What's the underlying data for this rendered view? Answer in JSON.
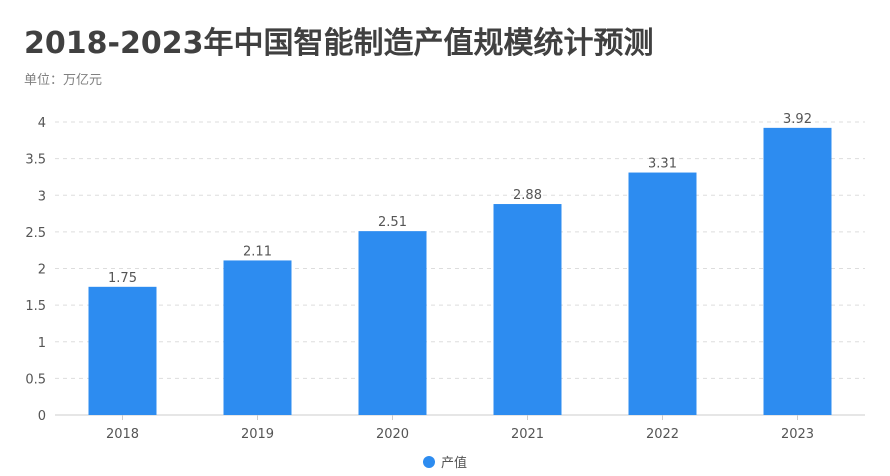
{
  "title": "2018-2023年中国智能制造产值规模统计预测",
  "subtitle": "单位：万亿元",
  "chart_data": {
    "type": "bar",
    "categories": [
      "2018",
      "2019",
      "2020",
      "2021",
      "2022",
      "2023"
    ],
    "series": [
      {
        "name": "产值",
        "values": [
          1.75,
          2.11,
          2.51,
          2.88,
          3.31,
          3.92
        ],
        "color": "#2d8cf0"
      }
    ],
    "yticks": [
      "0",
      "0.5",
      "1",
      "1.5",
      "2",
      "2.5",
      "3",
      "3.5",
      "4"
    ],
    "ylim": [
      0,
      4
    ],
    "grid": true,
    "legend_position": "bottom-center",
    "data_labels": true
  }
}
